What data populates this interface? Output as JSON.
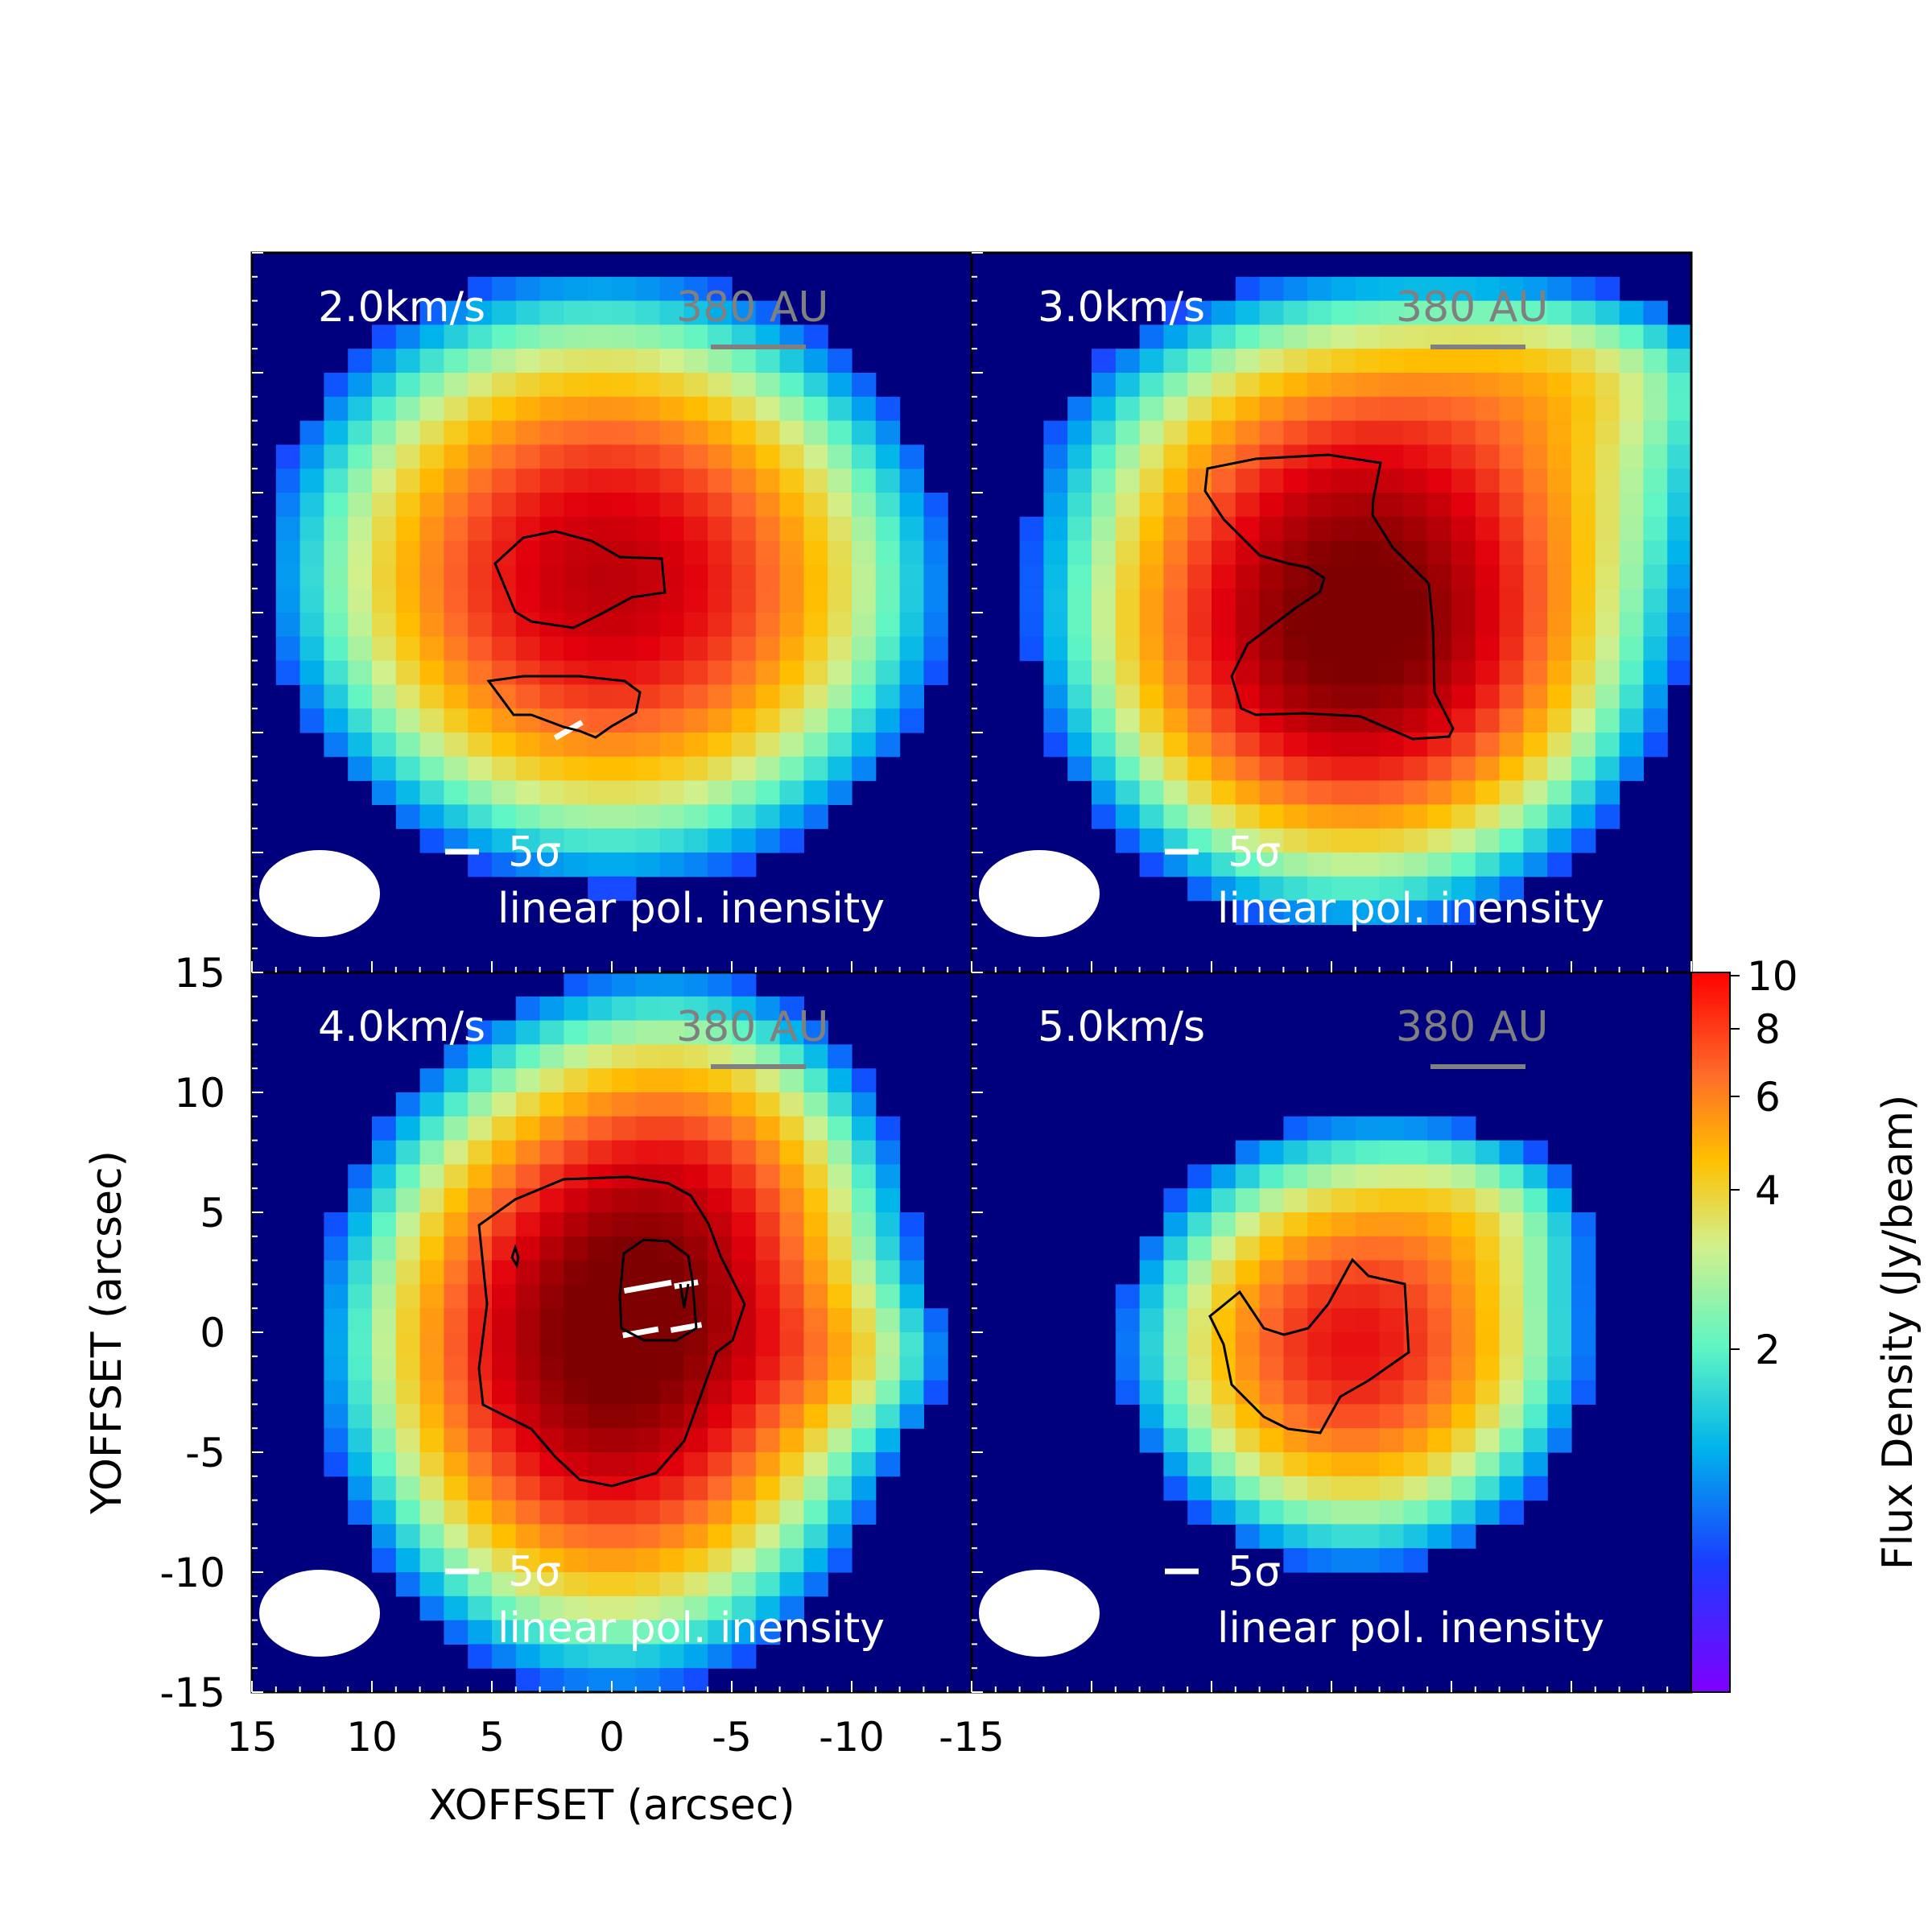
{
  "colors": {
    "background_field": "#00007f",
    "panel_text": "#ffffff",
    "scale_bar": "#808080",
    "contour": "#000000",
    "vector": "#ffffff",
    "colormap": [
      "#7f00ff",
      "#0f50ff",
      "#00b4eb",
      "#5ff5c4",
      "#d2f08c",
      "#ffc000",
      "#ff6a2a",
      "#e2000c",
      "#7f0000"
    ]
  },
  "axes": {
    "xlabel": "XOFFSET (arcsec)",
    "ylabel": "YOFFSET (arcsec)",
    "xticks": [
      15,
      10,
      5,
      0,
      -5,
      -10,
      -15
    ],
    "xtick_labels": [
      "15",
      "10",
      "5",
      "0",
      "-5",
      "-10",
      "-15"
    ],
    "yticks": [
      15,
      10,
      5,
      0,
      -5,
      -10,
      -15
    ],
    "ytick_labels": [
      "15",
      "10",
      "5",
      "0",
      "-5",
      "-10",
      "-15"
    ]
  },
  "colorbar": {
    "label": "Flux Density (Jy/beam)",
    "scale": "log",
    "range": [
      0.5,
      10
    ],
    "ticks": [
      10,
      8,
      6,
      4,
      2
    ],
    "tick_labels": [
      "10",
      "8",
      "6",
      "4",
      "2"
    ]
  },
  "panel_text": {
    "scale_label": "380 AU",
    "sigma_label": "5σ",
    "pol_label": "linear pol. inensity"
  },
  "chart_data": [
    {
      "type": "heatmap",
      "velocity_label": "2.0km/s",
      "xlim": [
        15,
        -15
      ],
      "ylim": [
        -15,
        15
      ],
      "peak": [
        0,
        0.5
      ],
      "peak_value": 7.0,
      "components": [
        {
          "x": 0,
          "y": 0.5,
          "sx": 6.5,
          "sy": 5.6,
          "amp": 7.0
        },
        {
          "x": 1,
          "y": 6,
          "sx": 6.5,
          "sy": 5,
          "amp": 1.6
        }
      ],
      "vectors": [
        {
          "x": 1.8,
          "y": -4.9,
          "angle": 30,
          "length": 1.3
        }
      ]
    },
    {
      "type": "heatmap",
      "velocity_label": "3.0km/s",
      "xlim": [
        15,
        -15
      ],
      "ylim": [
        -15,
        15
      ],
      "peak": [
        -1,
        -1
      ],
      "peak_value": 10.5,
      "components": [
        {
          "x": -1,
          "y": -1,
          "sx": 5.8,
          "sy": 5.3,
          "amp": 10.5
        },
        {
          "x": -3,
          "y": 7,
          "sx": 7.5,
          "sy": 4,
          "amp": 3.0
        },
        {
          "x": -10,
          "y": 10,
          "sx": 4,
          "sy": 2,
          "amp": 1.2
        }
      ],
      "vectors": []
    },
    {
      "type": "heatmap",
      "velocity_label": "4.0km/s",
      "xlim": [
        15,
        -15
      ],
      "ylim": [
        -15,
        15
      ],
      "peak": [
        0,
        -0.5
      ],
      "peak_value": 10.5,
      "components": [
        {
          "x": 0,
          "y": -0.5,
          "sx": 5.3,
          "sy": 6.3,
          "amp": 10.5
        },
        {
          "x": -4,
          "y": 6,
          "sx": 4,
          "sy": 4.5,
          "amp": 2.5
        },
        {
          "x": -9,
          "y": -1,
          "sx": 3,
          "sy": 2,
          "amp": 1.3
        }
      ],
      "vectors": [
        {
          "x": -1.5,
          "y": 1.9,
          "angle": 10,
          "length": 2.0
        },
        {
          "x": -3.1,
          "y": 2.0,
          "angle": 10,
          "length": 1.0
        },
        {
          "x": -1.2,
          "y": 0.0,
          "angle": 10,
          "length": 1.5
        },
        {
          "x": -3.1,
          "y": 0.2,
          "angle": 10,
          "length": 1.3
        }
      ]
    },
    {
      "type": "heatmap",
      "velocity_label": "5.0km/s",
      "xlim": [
        15,
        -15
      ],
      "ylim": [
        -15,
        15
      ],
      "peak": [
        -1,
        -0.5
      ],
      "peak_value": 6.5,
      "components": [
        {
          "x": -1,
          "y": -0.5,
          "sx": 4.7,
          "sy": 4.5,
          "amp": 6.5
        },
        {
          "x": -6,
          "y": 5,
          "sx": 3,
          "sy": 2,
          "amp": 1.1
        }
      ],
      "vectors": []
    }
  ]
}
